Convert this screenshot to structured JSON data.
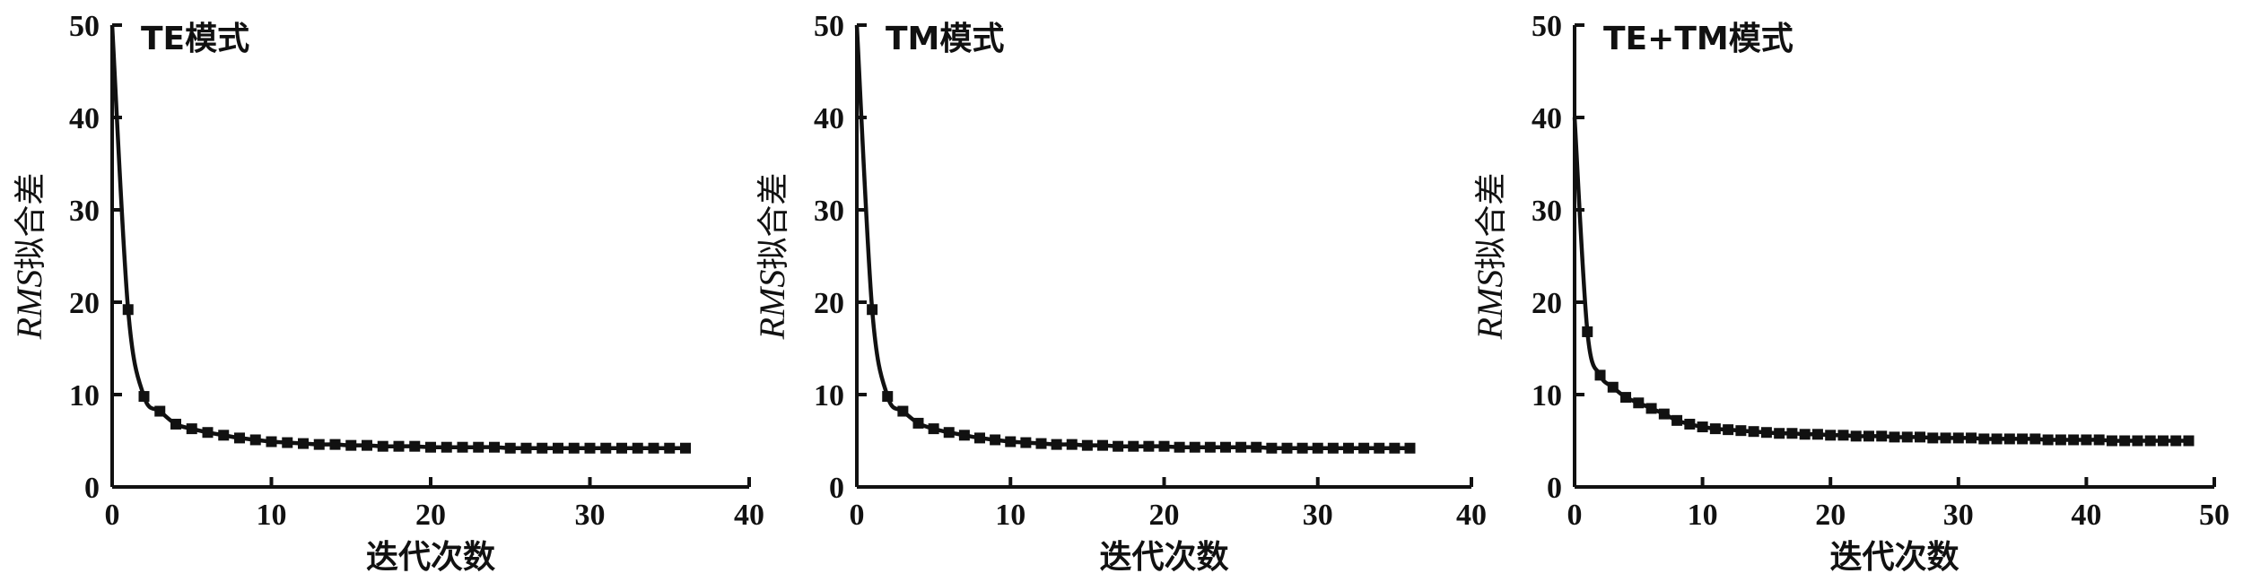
{
  "chart_data": [
    {
      "type": "line",
      "title": "TE模式",
      "xlabel": "迭代次数",
      "ylabel_italic": "RMS",
      "ylabel_text": "拟合差",
      "xlim": [
        0,
        40
      ],
      "ylim": [
        0,
        50
      ],
      "xticks": [
        0,
        10,
        20,
        30,
        40
      ],
      "yticks": [
        0,
        10,
        20,
        30,
        40,
        50
      ],
      "grid": false,
      "series": [
        {
          "x": [
            0,
            1,
            2,
            3,
            4,
            5,
            6,
            7,
            8,
            9,
            10,
            11,
            12,
            13,
            14,
            15,
            16,
            17,
            18,
            19,
            20,
            21,
            22,
            23,
            24,
            25,
            26,
            27,
            28,
            29,
            30,
            31,
            32,
            33,
            34,
            35,
            36
          ],
          "y": [
            50,
            19.2,
            9.8,
            8.2,
            6.8,
            6.3,
            5.9,
            5.6,
            5.3,
            5.1,
            4.9,
            4.8,
            4.7,
            4.6,
            4.6,
            4.5,
            4.5,
            4.4,
            4.4,
            4.4,
            4.3,
            4.3,
            4.3,
            4.3,
            4.3,
            4.2,
            4.2,
            4.2,
            4.2,
            4.2,
            4.2,
            4.2,
            4.2,
            4.2,
            4.2,
            4.2,
            4.2
          ]
        }
      ]
    },
    {
      "type": "line",
      "title": "TM模式",
      "xlabel": "迭代次数",
      "ylabel_italic": "RMS",
      "ylabel_text": "拟合差",
      "xlim": [
        0,
        40
      ],
      "ylim": [
        0,
        50
      ],
      "xticks": [
        0,
        10,
        20,
        30,
        40
      ],
      "yticks": [
        0,
        10,
        20,
        30,
        40,
        50
      ],
      "grid": false,
      "series": [
        {
          "x": [
            0,
            1,
            2,
            3,
            4,
            5,
            6,
            7,
            8,
            9,
            10,
            11,
            12,
            13,
            14,
            15,
            16,
            17,
            18,
            19,
            20,
            21,
            22,
            23,
            24,
            25,
            26,
            27,
            28,
            29,
            30,
            31,
            32,
            33,
            34,
            35,
            36
          ],
          "y": [
            50,
            19.2,
            9.8,
            8.2,
            6.9,
            6.3,
            5.9,
            5.6,
            5.3,
            5.1,
            4.9,
            4.8,
            4.7,
            4.6,
            4.6,
            4.5,
            4.5,
            4.4,
            4.4,
            4.4,
            4.4,
            4.3,
            4.3,
            4.3,
            4.3,
            4.3,
            4.3,
            4.2,
            4.2,
            4.2,
            4.2,
            4.2,
            4.2,
            4.2,
            4.2,
            4.2,
            4.2
          ]
        }
      ]
    },
    {
      "type": "line",
      "title": "TE+TM模式",
      "xlabel": "迭代次数",
      "ylabel_italic": "RMS",
      "ylabel_text": "拟合差",
      "xlim": [
        0,
        50
      ],
      "ylim": [
        0,
        50
      ],
      "xticks": [
        0,
        10,
        20,
        30,
        40,
        50
      ],
      "yticks": [
        0,
        10,
        20,
        30,
        40,
        50
      ],
      "grid": false,
      "series": [
        {
          "x": [
            0,
            1,
            2,
            3,
            4,
            5,
            6,
            7,
            8,
            9,
            10,
            11,
            12,
            13,
            14,
            15,
            16,
            17,
            18,
            19,
            20,
            21,
            22,
            23,
            24,
            25,
            26,
            27,
            28,
            29,
            30,
            31,
            32,
            33,
            34,
            35,
            36,
            37,
            38,
            39,
            40,
            41,
            42,
            43,
            44,
            45,
            46,
            47,
            48
          ],
          "y": [
            40,
            16.8,
            12.1,
            10.8,
            9.7,
            9.1,
            8.5,
            7.9,
            7.2,
            6.8,
            6.5,
            6.3,
            6.2,
            6.1,
            6.0,
            5.9,
            5.8,
            5.8,
            5.7,
            5.7,
            5.6,
            5.6,
            5.5,
            5.5,
            5.5,
            5.4,
            5.4,
            5.4,
            5.3,
            5.3,
            5.3,
            5.3,
            5.2,
            5.2,
            5.2,
            5.2,
            5.2,
            5.1,
            5.1,
            5.1,
            5.1,
            5.1,
            5.0,
            5.0,
            5.0,
            5.0,
            5.0,
            5.0,
            5.0
          ]
        }
      ]
    }
  ]
}
